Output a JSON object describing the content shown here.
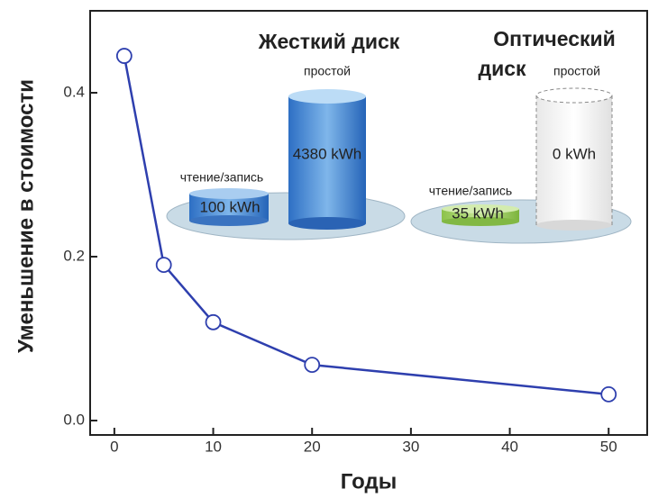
{
  "chart_data": {
    "type": "line",
    "x_label": "Годы",
    "y_label": "Уменьшение в стоимости",
    "x": [
      1,
      5,
      10,
      20,
      50
    ],
    "series": [
      {
        "color": "#2e3fae",
        "values": [
          0.445,
          0.19,
          0.12,
          0.068,
          0.032
        ]
      }
    ],
    "xlim": [
      -2.45,
      53.9
    ],
    "ylim": [
      -0.0176,
      0.5
    ],
    "xticks": [
      0,
      10,
      20,
      30,
      40,
      50
    ],
    "yticks": [
      {
        "value": 0,
        "label": "0.0"
      },
      0.2,
      0.4
    ],
    "insets": [
      {
        "title_lines": [
          "Жесткий диск"
        ],
        "idle_label": "простой",
        "idle_value": "4380 kWh",
        "rw_label": "чтение/запись",
        "rw_value": "100 kWh"
      },
      {
        "title_lines": [
          "Оптический",
          "диск"
        ],
        "idle_label": "простой",
        "idle_value": "0 kWh",
        "rw_label": "чтение/запись",
        "rw_value": "35 kWh"
      }
    ]
  }
}
